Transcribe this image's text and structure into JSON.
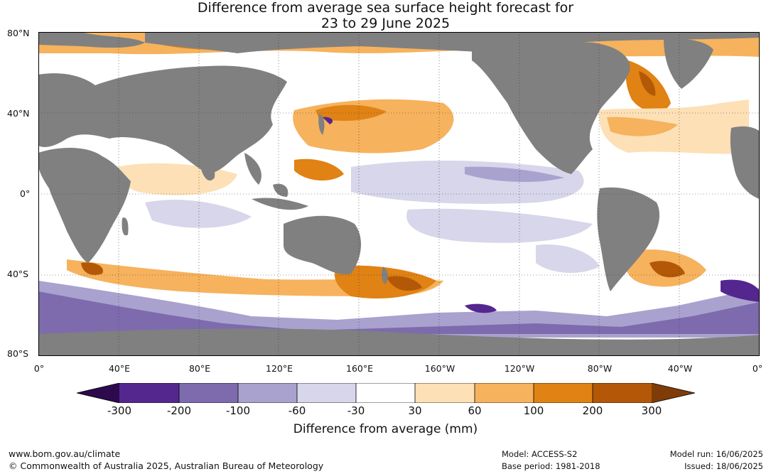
{
  "title_line1": "Difference from average sea surface height forecast for",
  "title_line2": "23 to 29 June 2025",
  "lat_labels": [
    "80°N",
    "40°N",
    "0°",
    "40°S",
    "80°S"
  ],
  "lon_labels": [
    "0°",
    "40°E",
    "80°E",
    "120°E",
    "160°E",
    "160°W",
    "120°W",
    "80°W",
    "40°W",
    "0°"
  ],
  "colorbar": {
    "title": "Difference from average (mm)",
    "ticks": [
      "-300",
      "-200",
      "-100",
      "-60",
      "-30",
      "30",
      "60",
      "100",
      "200",
      "300"
    ],
    "colors": [
      "#2d0a4e",
      "#54278f",
      "#7d6bae",
      "#a9a2cf",
      "#d7d6ea",
      "#ffffff",
      "#fde0b6",
      "#f6b25d",
      "#e08214",
      "#b35806",
      "#7f3b08"
    ]
  },
  "map_colors": {
    "land": "#808080",
    "ocean": "#ffffff"
  },
  "footer": {
    "url": "www.bom.gov.au/climate",
    "copyright": "© Commonwealth of Australia 2025, Australian Bureau of Meteorology",
    "model": "Model: ACCESS-S2",
    "base_period": "Base period: 1981-2018",
    "model_run": "Model run: 16/06/2025",
    "issued": "Issued: 18/06/2025"
  }
}
